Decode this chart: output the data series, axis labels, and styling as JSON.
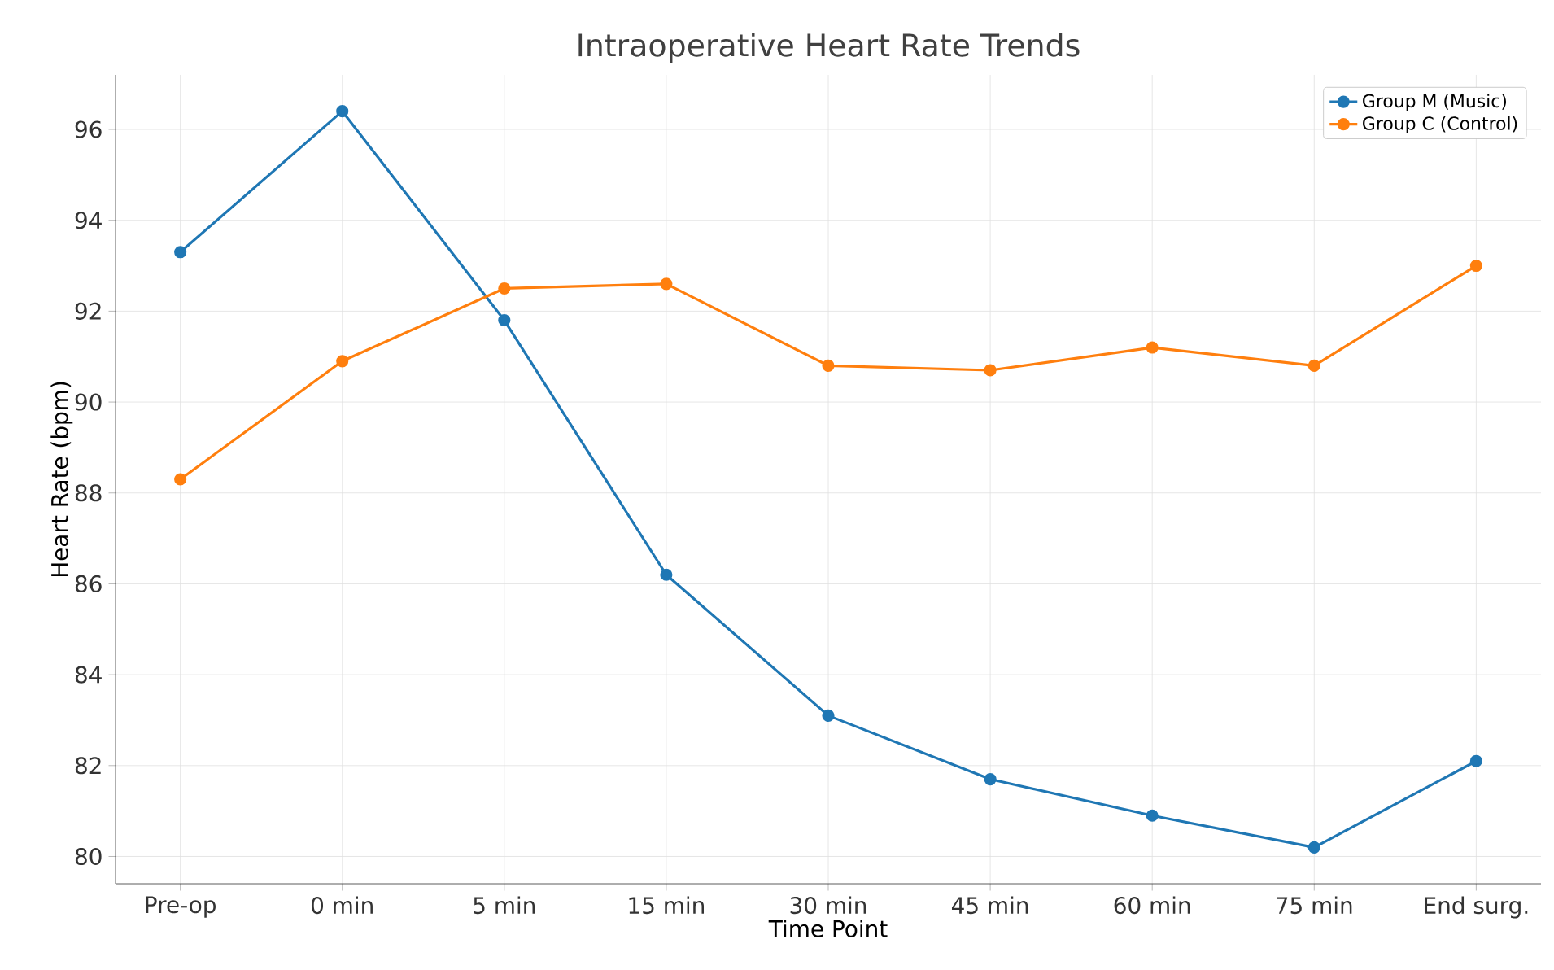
{
  "chart_data": {
    "type": "line",
    "title": "Intraoperative Heart Rate Trends",
    "xlabel": "Time Point",
    "ylabel": "Heart Rate (bpm)",
    "categories": [
      "Pre-op",
      "0 min",
      "5 min",
      "15 min",
      "30 min",
      "45 min",
      "60 min",
      "75 min",
      "End surg."
    ],
    "series": [
      {
        "name": "Group M (Music)",
        "color": "#1f77b4",
        "values": [
          93.3,
          96.4,
          91.8,
          86.2,
          83.1,
          81.7,
          80.9,
          80.2,
          82.1
        ]
      },
      {
        "name": "Group C (Control)",
        "color": "#ff7f0e",
        "values": [
          88.3,
          90.9,
          92.5,
          92.6,
          90.8,
          90.7,
          91.2,
          90.8,
          93.0
        ]
      }
    ],
    "ylim": [
      79.4,
      97.2
    ],
    "yticks": [
      80,
      82,
      84,
      86,
      88,
      90,
      92,
      94,
      96
    ],
    "grid": true,
    "legend": "top right",
    "marker": "circle",
    "line_style": "solid"
  }
}
